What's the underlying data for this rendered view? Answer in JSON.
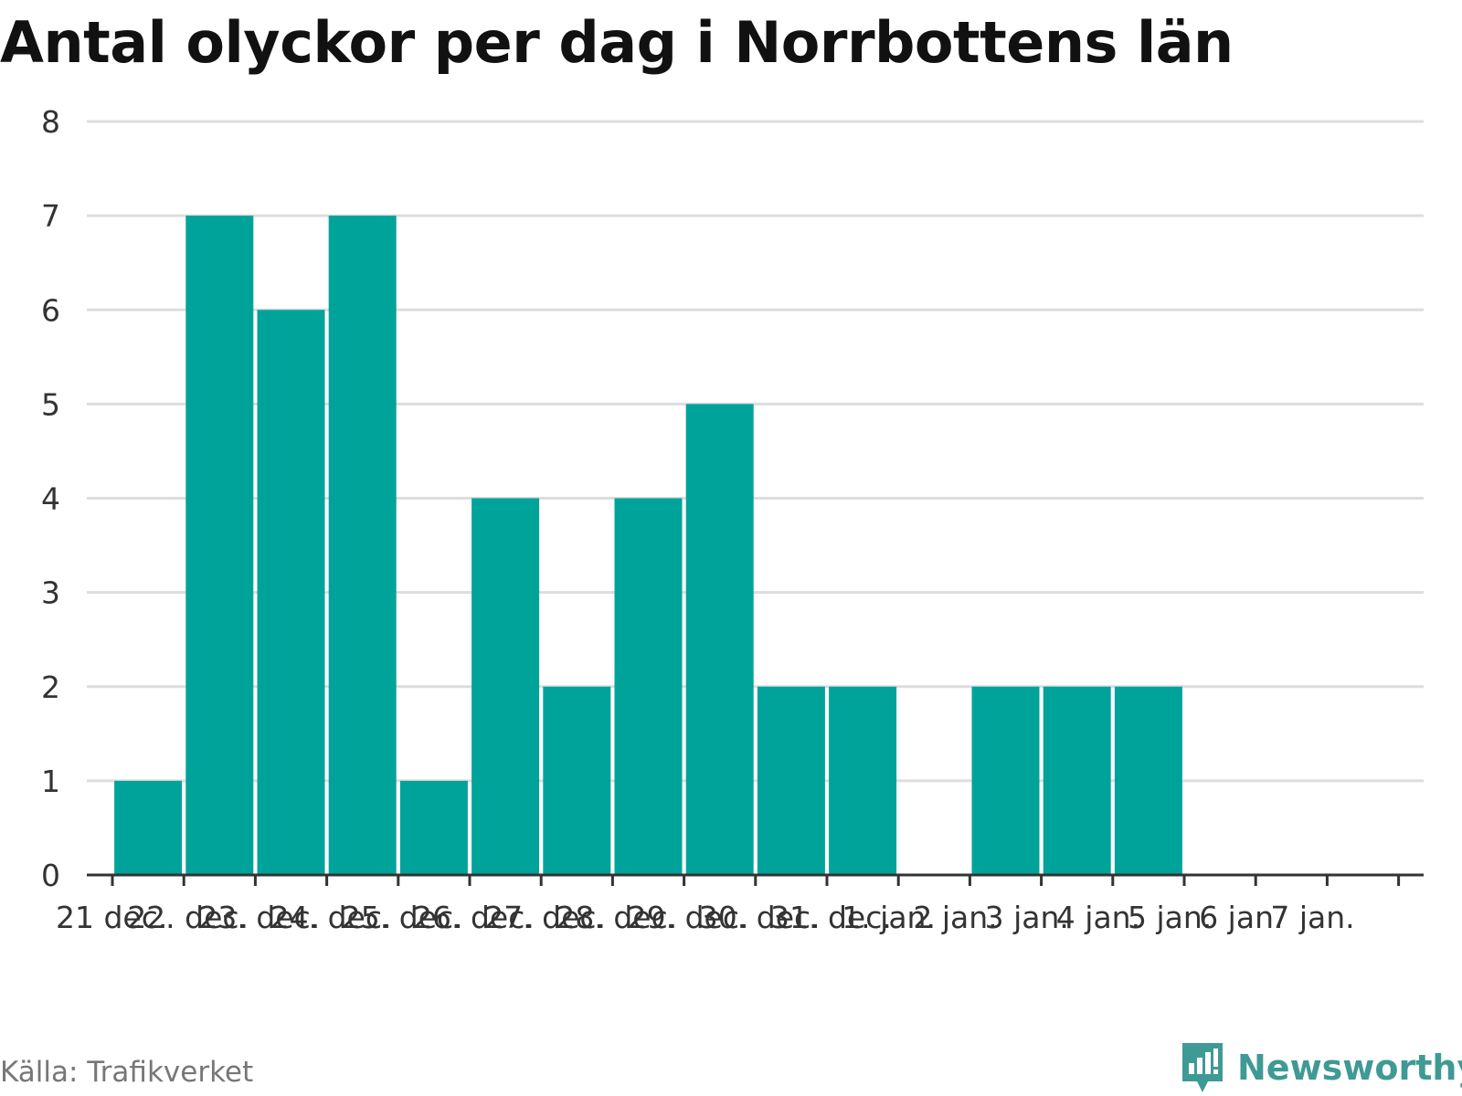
{
  "source": "Källa: Trafikverket",
  "brand": {
    "name": "Newsworthy",
    "logo_icon": "bar-chart-speech-bubble-icon",
    "color": "#3f9a95"
  },
  "chart_data": {
    "type": "bar",
    "title": "Antal olyckor per dag i Norrbottens län",
    "xlabel": "",
    "ylabel": "",
    "categories": [
      "21 dec.",
      "22. dec.",
      "23. dec.",
      "24. dec.",
      "25. dec.",
      "26. dec.",
      "27. dec.",
      "28. dec.",
      "29. dec.",
      "30. dec.",
      "31. dec.",
      "1. jan.",
      "2 jan.",
      "3 jan.",
      "4 jan.",
      "5 jan.",
      "6 jan.",
      "7 jan."
    ],
    "values": [
      1,
      7,
      6,
      7,
      1,
      4,
      2,
      4,
      5,
      2,
      2,
      0,
      2,
      2,
      2,
      0,
      0,
      0
    ],
    "ylim": [
      0,
      8
    ],
    "yticks": [
      0,
      1,
      2,
      3,
      4,
      5,
      6,
      7,
      8
    ],
    "grid": true,
    "bar_color": "#00a39a",
    "grid_color": "#dddddd",
    "axis_color": "#333333"
  }
}
